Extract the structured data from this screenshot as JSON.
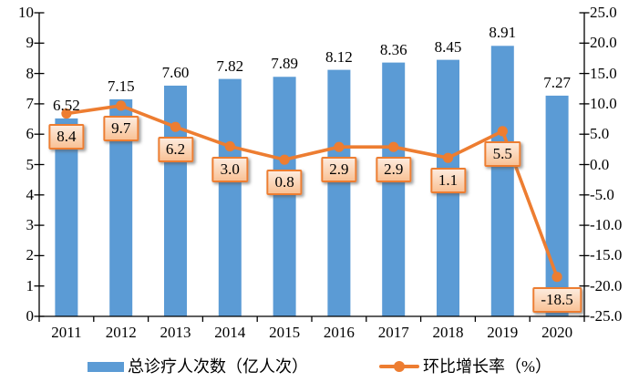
{
  "chart_data": {
    "type": "combo-bar-line",
    "title": "",
    "categories": [
      "2011",
      "2012",
      "2013",
      "2014",
      "2015",
      "2016",
      "2017",
      "2018",
      "2019",
      "2020"
    ],
    "series": [
      {
        "name": "总诊疗人次数（亿人次）",
        "chart": "bar",
        "axis": "left",
        "values": [
          6.52,
          7.15,
          7.6,
          7.82,
          7.89,
          8.12,
          8.36,
          8.45,
          8.91,
          7.27
        ],
        "labels": [
          "6.52",
          "7.15",
          "7.60",
          "7.82",
          "7.89",
          "8.12",
          "8.36",
          "8.45",
          "8.91",
          "7.27"
        ]
      },
      {
        "name": "环比增长率（%）",
        "chart": "line",
        "axis": "right",
        "values": [
          8.4,
          9.7,
          6.2,
          3.0,
          0.8,
          2.9,
          2.9,
          1.1,
          5.5,
          -18.5
        ],
        "labels": [
          "8.4",
          "9.7",
          "6.2",
          "3.0",
          "0.8",
          "2.9",
          "2.9",
          "1.1",
          "5.5",
          "-18.5"
        ]
      }
    ],
    "left_axis": {
      "min": 0,
      "max": 10,
      "step": 1,
      "tick_labels": [
        "0",
        "1",
        "2",
        "3",
        "4",
        "5",
        "6",
        "7",
        "8",
        "9",
        "10"
      ]
    },
    "right_axis": {
      "min": -25,
      "max": 25,
      "step": 5,
      "tick_labels": [
        "-25.0",
        "-20.0",
        "-15.0",
        "-10.0",
        "-5.0",
        "0.0",
        "5.0",
        "10.0",
        "15.0",
        "20.0",
        "25.0"
      ]
    },
    "grid": "off",
    "legend": {
      "position": "bottom",
      "items": [
        {
          "label": "总诊疗人次数（亿人次）"
        },
        {
          "label": "环比增长率（%）"
        }
      ]
    },
    "colors": {
      "bar": "#5B9BD5",
      "line": "#ED7D31",
      "axis": "#000000",
      "text": "#000000",
      "background": "#FFFFFF",
      "callout_border": "#ED7D31",
      "callout_fill_top": "#FDEBDD",
      "callout_fill_bottom": "#F9C296"
    }
  }
}
